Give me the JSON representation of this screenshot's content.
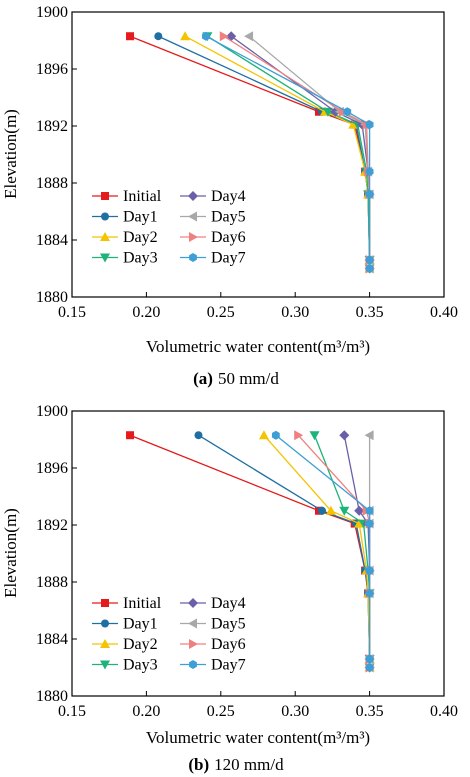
{
  "chart_data": [
    {
      "type": "line",
      "panel_label": "(a)",
      "caption": "50 mm/d",
      "xlabel": "Volumetric water content(m³/m³)",
      "ylabel": "Elevation(m)",
      "xlim": [
        0.15,
        0.4
      ],
      "ylim": [
        1880,
        1900
      ],
      "xticks": [
        "0.15",
        "0.20",
        "0.25",
        "0.30",
        "0.35",
        "0.40"
      ],
      "yticks": [
        "1880",
        "1884",
        "1888",
        "1892",
        "1896",
        "1900"
      ],
      "grid": false,
      "legend_position": "lower-left",
      "y": [
        1898.3,
        1893.0,
        1892.1,
        1888.8,
        1887.2,
        1882.6,
        1882.0
      ],
      "series": [
        {
          "name": "Initial",
          "color": "#e41a1c",
          "marker": "square",
          "x": [
            0.189,
            0.316,
            0.34,
            0.347,
            0.349,
            0.35,
            0.35
          ]
        },
        {
          "name": "Day1",
          "color": "#1f6fa3",
          "marker": "circle",
          "x": [
            0.208,
            0.318,
            0.341,
            0.347,
            0.349,
            0.35,
            0.35
          ]
        },
        {
          "name": "Day2",
          "color": "#f5c400",
          "marker": "triangle-up",
          "x": [
            0.226,
            0.32,
            0.339,
            0.347,
            0.349,
            0.35,
            0.35
          ]
        },
        {
          "name": "Day3",
          "color": "#1db37a",
          "marker": "triangle-down",
          "x": [
            0.241,
            0.322,
            0.342,
            0.348,
            0.349,
            0.35,
            0.35
          ]
        },
        {
          "name": "Day4",
          "color": "#6a5fa8",
          "marker": "diamond",
          "x": [
            0.257,
            0.327,
            0.345,
            0.349,
            0.35,
            0.35,
            0.35
          ]
        },
        {
          "name": "Day5",
          "color": "#a8a8a8",
          "marker": "triangle-left",
          "x": [
            0.269,
            0.33,
            0.347,
            0.349,
            0.35,
            0.35,
            0.35
          ]
        },
        {
          "name": "Day6",
          "color": "#f08080",
          "marker": "triangle-right",
          "x": [
            0.252,
            0.332,
            0.348,
            0.349,
            0.35,
            0.35,
            0.35
          ]
        },
        {
          "name": "Day7",
          "color": "#3d9fd6",
          "marker": "hexagon",
          "x": [
            0.24,
            0.335,
            0.35,
            0.35,
            0.35,
            0.35,
            0.35
          ]
        }
      ]
    },
    {
      "type": "line",
      "panel_label": "(b)",
      "caption": "120 mm/d",
      "xlabel": "Volumetric water content(m³/m³)",
      "ylabel": "Elevation(m)",
      "xlim": [
        0.15,
        0.4
      ],
      "ylim": [
        1880,
        1900
      ],
      "xticks": [
        "0.15",
        "0.20",
        "0.25",
        "0.30",
        "0.35",
        "0.40"
      ],
      "yticks": [
        "1880",
        "1884",
        "1888",
        "1892",
        "1896",
        "1900"
      ],
      "grid": false,
      "legend_position": "lower-left",
      "y": [
        1898.3,
        1893.0,
        1892.1,
        1888.8,
        1887.2,
        1882.6,
        1882.0
      ],
      "series": [
        {
          "name": "Initial",
          "color": "#e41a1c",
          "marker": "square",
          "x": [
            0.189,
            0.316,
            0.34,
            0.347,
            0.349,
            0.35,
            0.35
          ]
        },
        {
          "name": "Day1",
          "color": "#1f6fa3",
          "marker": "circle",
          "x": [
            0.235,
            0.318,
            0.341,
            0.347,
            0.349,
            0.35,
            0.35
          ]
        },
        {
          "name": "Day2",
          "color": "#f5c400",
          "marker": "triangle-up",
          "x": [
            0.279,
            0.324,
            0.343,
            0.348,
            0.349,
            0.35,
            0.35
          ]
        },
        {
          "name": "Day3",
          "color": "#1db37a",
          "marker": "triangle-down",
          "x": [
            0.313,
            0.333,
            0.346,
            0.349,
            0.35,
            0.35,
            0.35
          ]
        },
        {
          "name": "Day4",
          "color": "#6a5fa8",
          "marker": "diamond",
          "x": [
            0.333,
            0.343,
            0.349,
            0.35,
            0.35,
            0.35,
            0.35
          ]
        },
        {
          "name": "Day5",
          "color": "#a8a8a8",
          "marker": "triangle-left",
          "x": [
            0.35,
            0.35,
            0.35,
            0.35,
            0.35,
            0.35,
            0.35
          ]
        },
        {
          "name": "Day6",
          "color": "#f08080",
          "marker": "triangle-right",
          "x": [
            0.302,
            0.348,
            0.35,
            0.35,
            0.35,
            0.35,
            0.35
          ]
        },
        {
          "name": "Day7",
          "color": "#3d9fd6",
          "marker": "hexagon",
          "x": [
            0.287,
            0.35,
            0.35,
            0.35,
            0.35,
            0.35,
            0.35
          ]
        }
      ]
    }
  ]
}
